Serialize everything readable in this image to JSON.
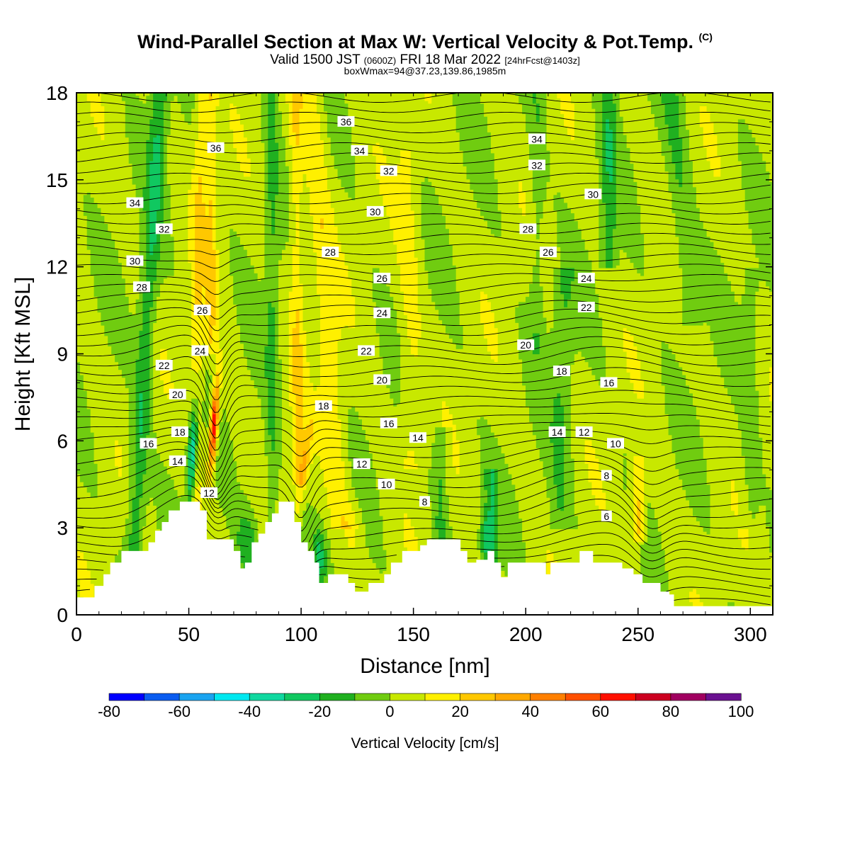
{
  "header": {
    "title": "Wind-Parallel Section at Max W: Vertical Velocity & Pot.Temp.",
    "title_mark": "(C)",
    "subtitle_main": "Valid 1500 JST",
    "subtitle_z": "(0600Z)",
    "subtitle_date": "FRI 18 Mar 2022",
    "subtitle_fcst": "[24hrFcst@1403z]",
    "box_info": "boxWmax=94@37.23,139.86,1985m"
  },
  "chart_data": {
    "type": "heatmap",
    "title": "Wind-Parallel Section at Max W: Vertical Velocity & Pot.Temp.",
    "xlabel": "Distance [nm]",
    "ylabel": "Height [Kft MSL]",
    "xlim": [
      0,
      310
    ],
    "ylim": [
      0,
      18
    ],
    "x_ticks": [
      "0",
      "50",
      "100",
      "150",
      "200",
      "250",
      "300"
    ],
    "y_ticks": [
      "0",
      "3",
      "6",
      "9",
      "12",
      "15",
      "18"
    ],
    "colorbar": {
      "label": "Vertical Velocity [cm/s]",
      "tick_labels": [
        "-80",
        "-60",
        "-40",
        "-20",
        "0",
        "20",
        "40",
        "60",
        "80",
        "100"
      ],
      "bins": [
        -80,
        -70,
        -60,
        -50,
        -40,
        -30,
        -20,
        -10,
        0,
        10,
        20,
        30,
        40,
        50,
        60,
        70,
        80,
        90,
        100
      ],
      "colors": [
        "#0000ff",
        "#0a5cf0",
        "#1aa4f0",
        "#00e8f0",
        "#10d8a0",
        "#10c860",
        "#20b020",
        "#70cc10",
        "#c8e800",
        "#fff000",
        "#ffc800",
        "#ffa800",
        "#ff8000",
        "#ff5000",
        "#ff1000",
        "#cc0020",
        "#a00060",
        "#6a1090"
      ]
    },
    "contour_labels": [
      {
        "text": "36",
        "x": 120,
        "y": 17.0
      },
      {
        "text": "36",
        "x": 62,
        "y": 16.1
      },
      {
        "text": "34",
        "x": 126,
        "y": 16.0
      },
      {
        "text": "34",
        "x": 205,
        "y": 16.4
      },
      {
        "text": "34",
        "x": 26,
        "y": 14.2
      },
      {
        "text": "32",
        "x": 139,
        "y": 15.3
      },
      {
        "text": "32",
        "x": 205,
        "y": 15.5
      },
      {
        "text": "32",
        "x": 39,
        "y": 13.3
      },
      {
        "text": "30",
        "x": 133,
        "y": 13.9
      },
      {
        "text": "30",
        "x": 230,
        "y": 14.5
      },
      {
        "text": "30",
        "x": 26,
        "y": 12.2
      },
      {
        "text": "28",
        "x": 113,
        "y": 12.5
      },
      {
        "text": "28",
        "x": 201,
        "y": 13.3
      },
      {
        "text": "28",
        "x": 29,
        "y": 11.3
      },
      {
        "text": "26",
        "x": 136,
        "y": 11.6
      },
      {
        "text": "26",
        "x": 210,
        "y": 12.5
      },
      {
        "text": "26",
        "x": 56,
        "y": 10.5
      },
      {
        "text": "24",
        "x": 136,
        "y": 10.4
      },
      {
        "text": "24",
        "x": 227,
        "y": 11.6
      },
      {
        "text": "24",
        "x": 55,
        "y": 9.1
      },
      {
        "text": "22",
        "x": 129,
        "y": 9.1
      },
      {
        "text": "22",
        "x": 227,
        "y": 10.6
      },
      {
        "text": "22",
        "x": 39,
        "y": 8.6
      },
      {
        "text": "20",
        "x": 136,
        "y": 8.1
      },
      {
        "text": "20",
        "x": 200,
        "y": 9.3
      },
      {
        "text": "20",
        "x": 45,
        "y": 7.6
      },
      {
        "text": "18",
        "x": 110,
        "y": 7.2
      },
      {
        "text": "18",
        "x": 216,
        "y": 8.4
      },
      {
        "text": "18",
        "x": 46,
        "y": 6.3
      },
      {
        "text": "16",
        "x": 139,
        "y": 6.6
      },
      {
        "text": "16",
        "x": 237,
        "y": 8.0
      },
      {
        "text": "16",
        "x": 32,
        "y": 5.9
      },
      {
        "text": "14",
        "x": 152,
        "y": 6.1
      },
      {
        "text": "14",
        "x": 214,
        "y": 6.3
      },
      {
        "text": "14",
        "x": 45,
        "y": 5.3
      },
      {
        "text": "12",
        "x": 127,
        "y": 5.2
      },
      {
        "text": "12",
        "x": 226,
        "y": 6.3
      },
      {
        "text": "12",
        "x": 59,
        "y": 4.2
      },
      {
        "text": "10",
        "x": 138,
        "y": 4.5
      },
      {
        "text": "10",
        "x": 240,
        "y": 5.9
      },
      {
        "text": "8",
        "x": 155,
        "y": 3.9
      },
      {
        "text": "8",
        "x": 236,
        "y": 4.8
      },
      {
        "text": "6",
        "x": 236,
        "y": 3.4
      }
    ],
    "terrain_kft": [
      [
        0,
        0.6
      ],
      [
        5,
        0.6
      ],
      [
        8,
        1.0
      ],
      [
        12,
        1.4
      ],
      [
        15,
        1.8
      ],
      [
        20,
        2.2
      ],
      [
        29,
        2.2
      ],
      [
        32,
        2.5
      ],
      [
        35,
        2.9
      ],
      [
        38,
        3.2
      ],
      [
        41,
        3.6
      ],
      [
        46,
        3.9
      ],
      [
        52,
        3.9
      ],
      [
        55,
        3.6
      ],
      [
        58,
        2.6
      ],
      [
        66,
        2.6
      ],
      [
        70,
        2.2
      ],
      [
        73,
        1.6
      ],
      [
        75,
        1.8
      ],
      [
        78,
        2.5
      ],
      [
        81,
        2.8
      ],
      [
        84,
        3.2
      ],
      [
        87,
        3.5
      ],
      [
        90,
        3.9
      ],
      [
        94,
        3.9
      ],
      [
        97,
        3.2
      ],
      [
        100,
        2.5
      ],
      [
        103,
        2.2
      ],
      [
        106,
        1.8
      ],
      [
        108,
        1.1
      ],
      [
        112,
        1.4
      ],
      [
        118,
        1.4
      ],
      [
        121,
        1.1
      ],
      [
        124,
        0.8
      ],
      [
        128,
        0.8
      ],
      [
        130,
        1.1
      ],
      [
        134,
        1.1
      ],
      [
        137,
        1.4
      ],
      [
        140,
        1.8
      ],
      [
        145,
        2.2
      ],
      [
        150,
        2.2
      ],
      [
        153,
        2.4
      ],
      [
        156,
        2.6
      ],
      [
        168,
        2.6
      ],
      [
        171,
        2.2
      ],
      [
        174,
        1.8
      ],
      [
        178,
        1.9
      ],
      [
        183,
        2.2
      ],
      [
        186,
        1.8
      ],
      [
        189,
        1.3
      ],
      [
        192,
        1.8
      ],
      [
        206,
        1.8
      ],
      [
        209,
        1.4
      ],
      [
        211,
        1.8
      ],
      [
        220,
        1.8
      ],
      [
        224,
        2.2
      ],
      [
        230,
        1.8
      ],
      [
        240,
        1.8
      ],
      [
        243,
        1.6
      ],
      [
        248,
        1.4
      ],
      [
        252,
        1.1
      ],
      [
        256,
        1.1
      ],
      [
        260,
        0.8
      ],
      [
        264,
        0.7
      ],
      [
        266,
        0.3
      ],
      [
        310,
        0.3
      ]
    ]
  }
}
